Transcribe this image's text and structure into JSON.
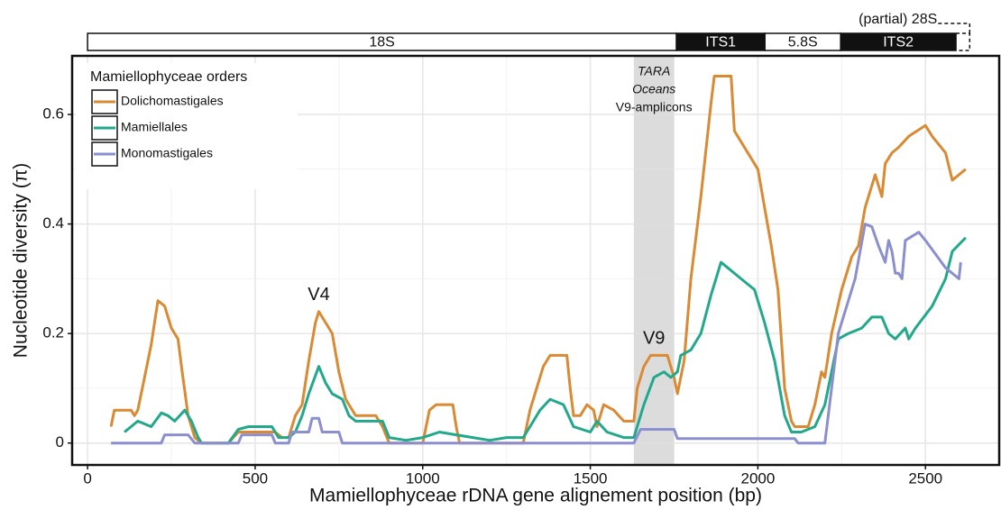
{
  "chart_data": {
    "type": "line",
    "xlabel": "Mamiellophyceae rDNA gene alignement position (bp)",
    "ylabel": "Nucleotide diversity (π)",
    "xlim": [
      -46,
      2720
    ],
    "ylim": [
      -0.04,
      0.707
    ],
    "xticks": [
      0,
      500,
      1000,
      1500,
      2000,
      2500
    ],
    "yticks": [
      0,
      0.2,
      0.4,
      0.6
    ],
    "grid": true,
    "legend": {
      "title": "Mamiellophyceae orders",
      "position": "upper left"
    },
    "highlight": {
      "start": 1630,
      "end": 1750,
      "label": [
        "TARA",
        "Oceans",
        "V9-amplicons"
      ]
    },
    "annotations": [
      {
        "text": "V4",
        "x": 690,
        "y": 0.27
      },
      {
        "text": "V9",
        "x": 1690,
        "y": 0.19
      }
    ],
    "gene_map": [
      {
        "label": "18S",
        "start": 0,
        "end": 1757,
        "color": "#ffffff"
      },
      {
        "label": "ITS1",
        "start": 1757,
        "end": 2021,
        "color": "#111111"
      },
      {
        "label": "5.8S",
        "start": 2021,
        "end": 2247,
        "color": "#ffffff"
      },
      {
        "label": "ITS2",
        "start": 2247,
        "end": 2591,
        "color": "#111111"
      },
      {
        "label": "(partial) 28S",
        "start": 2591,
        "end": 2632,
        "color": "dashed"
      }
    ],
    "series": [
      {
        "name": "Dolichomastigales",
        "color": "#d98a33",
        "x": [
          70,
          80,
          130,
          140,
          150,
          170,
          190,
          210,
          230,
          250,
          270,
          280,
          300,
          320,
          340,
          420,
          450,
          560,
          580,
          600,
          620,
          640,
          660,
          680,
          690,
          710,
          730,
          750,
          770,
          800,
          860,
          880,
          900,
          1000,
          1020,
          1040,
          1090,
          1100,
          1110,
          1300,
          1320,
          1360,
          1380,
          1430,
          1440,
          1450,
          1470,
          1490,
          1510,
          1520,
          1540,
          1570,
          1600,
          1630,
          1640,
          1660,
          1680,
          1730,
          1750,
          1760,
          1780,
          1800,
          1830,
          1860,
          1870,
          1920,
          1930,
          2000,
          2040,
          2060,
          2080,
          2100,
          2110,
          2150,
          2170,
          2190,
          2200,
          2220,
          2250,
          2280,
          2300,
          2320,
          2350,
          2370,
          2380,
          2400,
          2420,
          2450,
          2500,
          2520,
          2560,
          2580,
          2620
        ],
        "values": [
          0.03,
          0.06,
          0.06,
          0.05,
          0.06,
          0.12,
          0.18,
          0.26,
          0.25,
          0.21,
          0.19,
          0.14,
          0.05,
          0.01,
          0,
          0,
          0.02,
          0.02,
          0.01,
          0.01,
          0.05,
          0.07,
          0.15,
          0.22,
          0.24,
          0.22,
          0.2,
          0.13,
          0.08,
          0.05,
          0.05,
          0.03,
          0,
          0,
          0.06,
          0.07,
          0.07,
          0.03,
          0,
          0,
          0.06,
          0.14,
          0.16,
          0.16,
          0.1,
          0.05,
          0.05,
          0.07,
          0.06,
          0.03,
          0.07,
          0.06,
          0.04,
          0.04,
          0.1,
          0.14,
          0.16,
          0.16,
          0.12,
          0.09,
          0.15,
          0.3,
          0.45,
          0.62,
          0.67,
          0.67,
          0.57,
          0.5,
          0.36,
          0.28,
          0.1,
          0.04,
          0.03,
          0.03,
          0.07,
          0.13,
          0.12,
          0.2,
          0.28,
          0.34,
          0.36,
          0.43,
          0.49,
          0.45,
          0.51,
          0.53,
          0.54,
          0.56,
          0.58,
          0.56,
          0.53,
          0.48,
          0.5
        ]
      },
      {
        "name": "Mamiellales",
        "color": "#22a88a",
        "x": [
          110,
          130,
          150,
          190,
          220,
          240,
          260,
          290,
          310,
          330,
          340,
          420,
          450,
          480,
          550,
          570,
          600,
          620,
          640,
          660,
          690,
          710,
          730,
          760,
          780,
          800,
          880,
          900,
          950,
          1000,
          1050,
          1100,
          1150,
          1200,
          1250,
          1300,
          1320,
          1350,
          1380,
          1420,
          1450,
          1500,
          1520,
          1550,
          1600,
          1630,
          1660,
          1690,
          1720,
          1740,
          1760,
          1770,
          1800,
          1830,
          1860,
          1890,
          1910,
          1950,
          1990,
          2020,
          2050,
          2080,
          2100,
          2130,
          2170,
          2200,
          2240,
          2270,
          2310,
          2340,
          2370,
          2390,
          2410,
          2440,
          2450,
          2470,
          2520,
          2560,
          2580,
          2620
        ],
        "values": [
          0.02,
          0.03,
          0.04,
          0.03,
          0.055,
          0.05,
          0.04,
          0.06,
          0.04,
          0.01,
          0,
          0,
          0.025,
          0.03,
          0.03,
          0.01,
          0.01,
          0.02,
          0.05,
          0.09,
          0.14,
          0.11,
          0.09,
          0.08,
          0.05,
          0.04,
          0.04,
          0.01,
          0.005,
          0.01,
          0.02,
          0.015,
          0.01,
          0.005,
          0.01,
          0.01,
          0.03,
          0.06,
          0.08,
          0.07,
          0.03,
          0.02,
          0.04,
          0.02,
          0.01,
          0.01,
          0.07,
          0.12,
          0.13,
          0.12,
          0.13,
          0.16,
          0.17,
          0.2,
          0.27,
          0.33,
          0.32,
          0.3,
          0.28,
          0.22,
          0.15,
          0.05,
          0.02,
          0.02,
          0.03,
          0.07,
          0.19,
          0.2,
          0.21,
          0.23,
          0.23,
          0.2,
          0.19,
          0.21,
          0.19,
          0.21,
          0.25,
          0.3,
          0.35,
          0.375
        ]
      },
      {
        "name": "Monomastigales",
        "color": "#8b8fcf",
        "x": [
          70,
          220,
          230,
          300,
          320,
          450,
          460,
          550,
          560,
          600,
          610,
          660,
          670,
          690,
          700,
          750,
          760,
          1630,
          1650,
          1750,
          1760,
          2110,
          2120,
          2200,
          2240,
          2290,
          2320,
          2340,
          2360,
          2380,
          2390,
          2400,
          2410,
          2420,
          2430,
          2440,
          2480,
          2500,
          2560,
          2600,
          2605
        ],
        "values": [
          0,
          0,
          0.015,
          0.015,
          0,
          0,
          0.015,
          0.015,
          0,
          0,
          0.02,
          0.02,
          0.045,
          0.045,
          0.02,
          0.02,
          0,
          0,
          0.025,
          0.025,
          0.008,
          0.008,
          0,
          0,
          0.2,
          0.3,
          0.4,
          0.395,
          0.36,
          0.33,
          0.37,
          0.35,
          0.31,
          0.31,
          0.3,
          0.37,
          0.385,
          0.37,
          0.32,
          0.3,
          0.33
        ]
      }
    ]
  }
}
